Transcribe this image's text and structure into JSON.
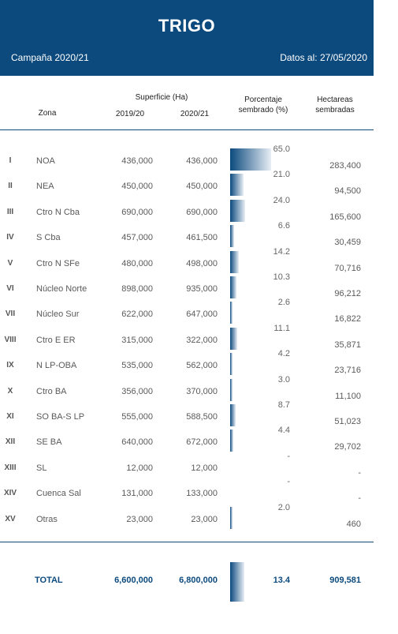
{
  "header": {
    "title": "TRIGO",
    "campaign": "Campaña 2020/21",
    "dates": "Datos al: 27/05/2020"
  },
  "columns": {
    "zona": "Zona",
    "superficie": "Superficie (Ha)",
    "y1": "2019/20",
    "y2": "2020/21",
    "pct": "Porcentaje sembrado (%)",
    "hec": "Hectareas sembradas"
  },
  "accent_color": "#0c4a7e",
  "rows": [
    {
      "num": "I",
      "zone": "NOA",
      "s19": "436,000",
      "s20": "436,000",
      "pct_text": "65.0",
      "pct": 65.0,
      "hec": "283,400"
    },
    {
      "num": "II",
      "zone": "NEA",
      "s19": "450,000",
      "s20": "450,000",
      "pct_text": "21.0",
      "pct": 21.0,
      "hec": "94,500"
    },
    {
      "num": "III",
      "zone": "Ctro N Cba",
      "s19": "690,000",
      "s20": "690,000",
      "pct_text": "24.0",
      "pct": 24.0,
      "hec": "165,600"
    },
    {
      "num": "IV",
      "zone": "S Cba",
      "s19": "457,000",
      "s20": "461,500",
      "pct_text": "6.6",
      "pct": 6.6,
      "hec": "30,459"
    },
    {
      "num": "V",
      "zone": "Ctro N SFe",
      "s19": "480,000",
      "s20": "498,000",
      "pct_text": "14.2",
      "pct": 14.2,
      "hec": "70,716"
    },
    {
      "num": "VI",
      "zone": "Núcleo Norte",
      "s19": "898,000",
      "s20": "935,000",
      "pct_text": "10.3",
      "pct": 10.3,
      "hec": "96,212"
    },
    {
      "num": "VII",
      "zone": "Núcleo Sur",
      "s19": "622,000",
      "s20": "647,000",
      "pct_text": "2.6",
      "pct": 2.6,
      "hec": "16,822"
    },
    {
      "num": "VIII",
      "zone": "Ctro E ER",
      "s19": "315,000",
      "s20": "322,000",
      "pct_text": "11.1",
      "pct": 11.1,
      "hec": "35,871"
    },
    {
      "num": "IX",
      "zone": "N LP-OBA",
      "s19": "535,000",
      "s20": "562,000",
      "pct_text": "4.2",
      "pct": 4.2,
      "hec": "23,716"
    },
    {
      "num": "X",
      "zone": "Ctro BA",
      "s19": "356,000",
      "s20": "370,000",
      "pct_text": "3.0",
      "pct": 3.0,
      "hec": "11,100"
    },
    {
      "num": "XI",
      "zone": "SO BA-S LP",
      "s19": "555,000",
      "s20": "588,500",
      "pct_text": "8.7",
      "pct": 8.7,
      "hec": "51,023"
    },
    {
      "num": "XII",
      "zone": "SE BA",
      "s19": "640,000",
      "s20": "672,000",
      "pct_text": "4.4",
      "pct": 4.4,
      "hec": "29,702"
    },
    {
      "num": "XIII",
      "zone": "SL",
      "s19": "12,000",
      "s20": "12,000",
      "pct_text": "-",
      "pct": 0,
      "hec": "-"
    },
    {
      "num": "XIV",
      "zone": "Cuenca Sal",
      "s19": "131,000",
      "s20": "133,000",
      "pct_text": "-",
      "pct": 0,
      "hec": "-"
    },
    {
      "num": "XV",
      "zone": "Otras",
      "s19": "23,000",
      "s20": "23,000",
      "pct_text": "2.0",
      "pct": 2.0,
      "hec": "460"
    }
  ],
  "total": {
    "label": "TOTAL",
    "s19": "6,600,000",
    "s20": "6,800,000",
    "pct_text": "13.4",
    "hec": "909,581"
  }
}
